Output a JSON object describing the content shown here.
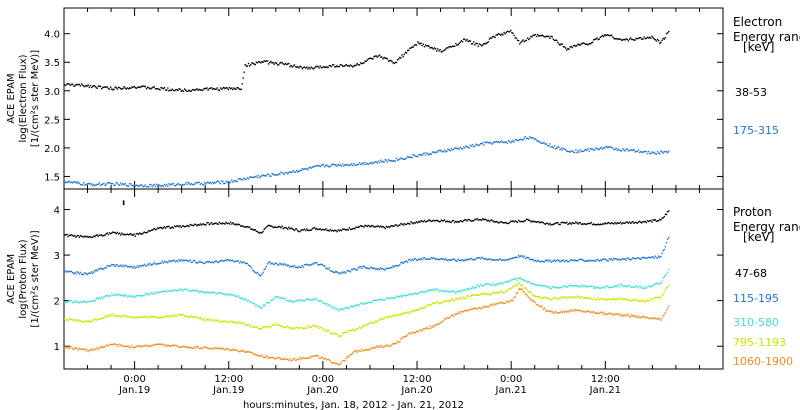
{
  "chart_data": [
    {
      "type": "scatter",
      "panel": "electron",
      "ylabel_lines": [
        "ACE EPAM",
        "log(Electron Flux)",
        "[1/(cm²s ster MeV)]"
      ],
      "legend_title_lines": [
        "Electron",
        "Energy ranges",
        "[keV]"
      ],
      "ylim": [
        1.28,
        4.45
      ],
      "yticks": [
        1.5,
        2.0,
        2.5,
        3.0,
        3.5,
        4.0
      ],
      "ytick_labels": [
        "1.5",
        "2.0",
        "2.5",
        "3.0",
        "3.5",
        "4.0"
      ],
      "x_unit": "hours after 2012-01-18 00:00 UT",
      "xlim": [
        15,
        99
      ],
      "grid": false,
      "series": [
        {
          "name": "38-53",
          "color": "#000000",
          "points": [
            [
              15,
              3.12
            ],
            [
              18,
              3.1
            ],
            [
              21,
              3.05
            ],
            [
              24,
              3.08
            ],
            [
              27,
              3.05
            ],
            [
              30,
              3.02
            ],
            [
              33,
              3.04
            ],
            [
              36,
              3.05
            ],
            [
              37.5,
              3.05
            ],
            [
              38,
              3.45
            ],
            [
              40,
              3.52
            ],
            [
              43,
              3.48
            ],
            [
              46,
              3.4
            ],
            [
              49,
              3.45
            ],
            [
              52,
              3.45
            ],
            [
              55,
              3.62
            ],
            [
              57,
              3.5
            ],
            [
              60,
              3.85
            ],
            [
              63,
              3.7
            ],
            [
              66,
              3.9
            ],
            [
              68,
              3.8
            ],
            [
              70,
              3.98
            ],
            [
              72,
              4.05
            ],
            [
              73,
              3.85
            ],
            [
              75,
              3.98
            ],
            [
              77,
              3.95
            ],
            [
              79,
              3.75
            ],
            [
              80,
              3.8
            ],
            [
              82,
              3.85
            ],
            [
              84,
              4.0
            ],
            [
              86,
              3.9
            ],
            [
              88,
              3.92
            ],
            [
              90,
              3.95
            ],
            [
              91,
              3.85
            ],
            [
              92,
              4.05
            ]
          ]
        },
        {
          "name": "175-315",
          "color": "#1e78d2",
          "points": [
            [
              15,
              1.42
            ],
            [
              18,
              1.37
            ],
            [
              21,
              1.38
            ],
            [
              24,
              1.36
            ],
            [
              27,
              1.35
            ],
            [
              30,
              1.38
            ],
            [
              33,
              1.39
            ],
            [
              36,
              1.42
            ],
            [
              39,
              1.5
            ],
            [
              42,
              1.55
            ],
            [
              45,
              1.62
            ],
            [
              48,
              1.7
            ],
            [
              51,
              1.72
            ],
            [
              54,
              1.75
            ],
            [
              57,
              1.8
            ],
            [
              60,
              1.88
            ],
            [
              63,
              1.95
            ],
            [
              66,
              2.02
            ],
            [
              69,
              2.1
            ],
            [
              72,
              2.12
            ],
            [
              74,
              2.2
            ],
            [
              76,
              2.1
            ],
            [
              78,
              2.0
            ],
            [
              80,
              1.95
            ],
            [
              82,
              1.98
            ],
            [
              84,
              2.02
            ],
            [
              86,
              1.98
            ],
            [
              88,
              1.95
            ],
            [
              90,
              1.92
            ],
            [
              92,
              1.95
            ]
          ]
        }
      ]
    },
    {
      "type": "scatter",
      "panel": "proton",
      "ylabel_lines": [
        "ACE EPAM",
        "log(Proton Flux)",
        "[1/(cm²s ster MeV)]"
      ],
      "legend_title_lines": [
        "Proton",
        "Energy ranges",
        "[keV]"
      ],
      "xlabel": "hours:minutes, Jan. 18, 2012 - Jan. 21, 2012",
      "ylim": [
        0.5,
        4.45
      ],
      "yticks": [
        1,
        2,
        3,
        4
      ],
      "ytick_labels": [
        "1",
        "2",
        "3",
        "4"
      ],
      "x_unit": "hours after 2012-01-18 00:00 UT",
      "xlim": [
        15,
        99
      ],
      "xticks": [
        24,
        36,
        48,
        60,
        72,
        84
      ],
      "xtick_time_labels": [
        "0:00",
        "12:00",
        "0:00",
        "12:00",
        "0:00",
        "12:00"
      ],
      "xtick_date_labels": [
        "Jan.19",
        "Jan.19",
        "Jan.20",
        "Jan.20",
        "Jan.21",
        "Jan.21"
      ],
      "grid": false,
      "series": [
        {
          "name": "47-68",
          "color": "#000000",
          "points": [
            [
              15,
              3.45
            ],
            [
              18,
              3.4
            ],
            [
              21,
              3.5
            ],
            [
              24,
              3.45
            ],
            [
              27,
              3.6
            ],
            [
              30,
              3.65
            ],
            [
              33,
              3.7
            ],
            [
              36,
              3.72
            ],
            [
              38,
              3.65
            ],
            [
              40,
              3.5
            ],
            [
              41,
              3.65
            ],
            [
              43,
              3.62
            ],
            [
              45,
              3.55
            ],
            [
              47,
              3.6
            ],
            [
              50,
              3.55
            ],
            [
              53,
              3.65
            ],
            [
              56,
              3.62
            ],
            [
              59,
              3.72
            ],
            [
              62,
              3.78
            ],
            [
              65,
              3.75
            ],
            [
              68,
              3.8
            ],
            [
              71,
              3.72
            ],
            [
              74,
              3.78
            ],
            [
              77,
              3.7
            ],
            [
              80,
              3.72
            ],
            [
              83,
              3.7
            ],
            [
              86,
              3.72
            ],
            [
              89,
              3.75
            ],
            [
              91,
              3.78
            ],
            [
              92,
              3.98
            ]
          ],
          "outliers": [
            [
              22.5,
              4.15
            ],
            [
              22.5,
              4.2
            ]
          ]
        },
        {
          "name": "115-195",
          "color": "#1e78d2",
          "points": [
            [
              15,
              2.65
            ],
            [
              18,
              2.6
            ],
            [
              21,
              2.8
            ],
            [
              24,
              2.75
            ],
            [
              27,
              2.85
            ],
            [
              30,
              2.9
            ],
            [
              33,
              2.85
            ],
            [
              36,
              2.9
            ],
            [
              38,
              2.85
            ],
            [
              40,
              2.55
            ],
            [
              41,
              2.85
            ],
            [
              43,
              2.8
            ],
            [
              45,
              2.75
            ],
            [
              47,
              2.85
            ],
            [
              50,
              2.6
            ],
            [
              53,
              2.75
            ],
            [
              56,
              2.7
            ],
            [
              59,
              2.9
            ],
            [
              62,
              2.95
            ],
            [
              65,
              2.9
            ],
            [
              68,
              2.95
            ],
            [
              71,
              2.9
            ],
            [
              73,
              3.0
            ],
            [
              75,
              2.9
            ],
            [
              77,
              2.88
            ],
            [
              80,
              2.9
            ],
            [
              83,
              2.9
            ],
            [
              86,
              2.92
            ],
            [
              89,
              2.95
            ],
            [
              91,
              2.98
            ],
            [
              92,
              3.4
            ]
          ]
        },
        {
          "name": "310-580",
          "color": "#40e0d0",
          "points": [
            [
              15,
              2.0
            ],
            [
              18,
              1.98
            ],
            [
              21,
              2.15
            ],
            [
              24,
              2.1
            ],
            [
              27,
              2.2
            ],
            [
              30,
              2.25
            ],
            [
              33,
              2.2
            ],
            [
              36,
              2.15
            ],
            [
              38,
              2.05
            ],
            [
              40,
              1.85
            ],
            [
              42,
              2.1
            ],
            [
              44,
              2.0
            ],
            [
              47,
              2.05
            ],
            [
              50,
              1.8
            ],
            [
              53,
              1.95
            ],
            [
              56,
              2.05
            ],
            [
              59,
              2.15
            ],
            [
              62,
              2.25
            ],
            [
              65,
              2.2
            ],
            [
              68,
              2.35
            ],
            [
              71,
              2.4
            ],
            [
              73,
              2.5
            ],
            [
              75,
              2.35
            ],
            [
              77,
              2.3
            ],
            [
              80,
              2.35
            ],
            [
              83,
              2.3
            ],
            [
              86,
              2.35
            ],
            [
              89,
              2.3
            ],
            [
              91,
              2.4
            ],
            [
              92,
              2.7
            ]
          ]
        },
        {
          "name": "795-1193",
          "color": "#c8e600",
          "points": [
            [
              15,
              1.6
            ],
            [
              18,
              1.55
            ],
            [
              21,
              1.7
            ],
            [
              24,
              1.65
            ],
            [
              27,
              1.65
            ],
            [
              30,
              1.7
            ],
            [
              33,
              1.6
            ],
            [
              36,
              1.55
            ],
            [
              38,
              1.5
            ],
            [
              40,
              1.4
            ],
            [
              42,
              1.5
            ],
            [
              44,
              1.4
            ],
            [
              47,
              1.45
            ],
            [
              50,
              1.25
            ],
            [
              53,
              1.45
            ],
            [
              56,
              1.65
            ],
            [
              59,
              1.75
            ],
            [
              62,
              1.95
            ],
            [
              65,
              2.05
            ],
            [
              68,
              2.15
            ],
            [
              71,
              2.2
            ],
            [
              73,
              2.4
            ],
            [
              75,
              2.1
            ],
            [
              77,
              2.05
            ],
            [
              80,
              2.1
            ],
            [
              83,
              2.05
            ],
            [
              86,
              2.05
            ],
            [
              89,
              2.0
            ],
            [
              91,
              2.1
            ],
            [
              92,
              2.35
            ]
          ]
        },
        {
          "name": "1060-1900",
          "color": "#f08c1e",
          "points": [
            [
              15,
              1.0
            ],
            [
              18,
              0.92
            ],
            [
              21,
              1.05
            ],
            [
              24,
              1.0
            ],
            [
              27,
              1.05
            ],
            [
              30,
              1.0
            ],
            [
              33,
              0.98
            ],
            [
              36,
              0.95
            ],
            [
              38,
              0.9
            ],
            [
              40,
              0.8
            ],
            [
              42,
              0.75
            ],
            [
              44,
              0.72
            ],
            [
              47,
              0.8
            ],
            [
              50,
              0.62
            ],
            [
              52,
              0.9
            ],
            [
              55,
              1.0
            ],
            [
              57,
              1.05
            ],
            [
              59,
              1.3
            ],
            [
              62,
              1.45
            ],
            [
              64,
              1.65
            ],
            [
              66,
              1.8
            ],
            [
              68,
              1.85
            ],
            [
              70,
              1.95
            ],
            [
              72,
              2.0
            ],
            [
              73,
              2.3
            ],
            [
              75,
              1.95
            ],
            [
              77,
              1.75
            ],
            [
              80,
              1.8
            ],
            [
              83,
              1.75
            ],
            [
              86,
              1.7
            ],
            [
              89,
              1.65
            ],
            [
              91,
              1.6
            ],
            [
              92,
              1.9
            ]
          ]
        }
      ]
    }
  ]
}
